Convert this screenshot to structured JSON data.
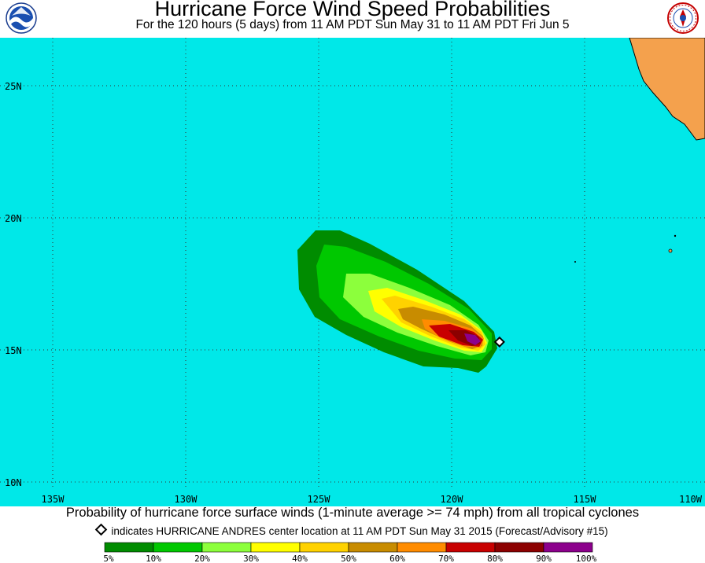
{
  "header": {
    "title": "Hurricane Force Wind Speed Probabilities",
    "subtitle": "For the 120 hours (5 days) from 11 AM PDT Sun May 31 to 11 AM PDT Fri Jun 5"
  },
  "logos": {
    "left": "noaa-logo",
    "right": "nws-logo"
  },
  "map": {
    "ocean_color": "#00e8e8",
    "land_color": "#f4a14d",
    "lat_labels": [
      "25N",
      "20N",
      "15N",
      "10N"
    ],
    "lon_labels": [
      "135W",
      "130W",
      "125W",
      "120W",
      "115W",
      "110W"
    ],
    "storm_center": {
      "lon": -118.2,
      "lat": 15.3
    }
  },
  "caption": {
    "line1": "Probability of hurricane force surface winds (1-minute average >= 74 mph) from all tropical cyclones",
    "line2": "indicates HURRICANE ANDRES center location at 11 AM PDT Sun May 31 2015 (Forecast/Advisory #15)"
  },
  "legend": {
    "colors": [
      "#008c00",
      "#00c800",
      "#8cff3c",
      "#ffff00",
      "#ffd200",
      "#c88c00",
      "#ff8c00",
      "#c80000",
      "#8c0000",
      "#8c008c"
    ],
    "labels": [
      "5%",
      "10%",
      "20%",
      "30%",
      "40%",
      "50%",
      "60%",
      "70%",
      "80%",
      "90%",
      "100%"
    ]
  }
}
